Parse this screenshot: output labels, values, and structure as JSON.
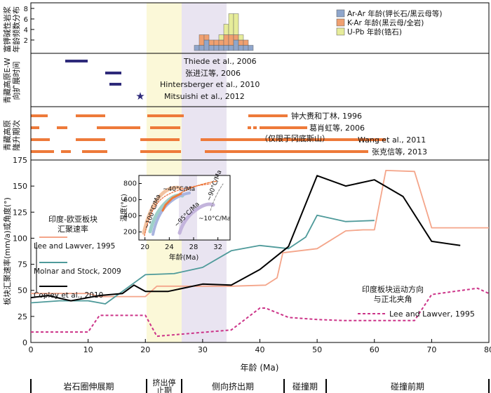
{
  "panel1": {
    "ylabel": "富钾碱性岩浆\n年龄频数分布",
    "yticks": [
      "2",
      "4",
      "6",
      "8"
    ],
    "legend": [
      {
        "label": "Ar-Ar 年龄(钾长石/黑云母等)",
        "color": "#8fa6cc"
      },
      {
        "label": "K-Ar 年龄(黑云母/全岩)",
        "color": "#f0a070"
      },
      {
        "label": "U-Pb 年龄(锆石)",
        "color": "#e6ec9a"
      }
    ]
  },
  "panel2": {
    "ylabel": "青藏高原E-W\n向扩展时间",
    "refs": [
      {
        "text": "Thiede et al., 2006"
      },
      {
        "text": "张进江等, 2006"
      },
      {
        "text": "Hintersberger et al., 2010"
      },
      {
        "text": "Mitsuishi et al., 2012"
      }
    ]
  },
  "panel3": {
    "ylabel": "青藏高原\n隆升期次",
    "refs": [
      {
        "text": "钟大赉和丁林, 1996"
      },
      {
        "text": "葛肖虹等, 2006"
      },
      {
        "text": "（仅限于冈底斯山）"
      },
      {
        "text": "Wang et al., 2011"
      },
      {
        "text": "张克信等, 2013"
      }
    ]
  },
  "main": {
    "ylabel": "板块汇聚速率(mm/a)或角度(°)",
    "xlabel": "年龄 (Ma)",
    "conv_label": "印度-欧亚板块\n汇聚速率",
    "angle_label": "印度板块运动方向\n与正北夹角",
    "angle_ref": "Lee and Lawver, 1995",
    "series": [
      {
        "name": "Lee and Lawver, 1995",
        "color": "#f4a58a"
      },
      {
        "name": "Molnar and Stock, 2009",
        "color": "#4e9a9a"
      },
      {
        "name": "Copley et al., 2010",
        "color": "#000000"
      }
    ]
  },
  "inset": {
    "ylabel": "温度(°C)",
    "xlabel": "年龄(Ma)",
    "labels": [
      "~40°C/Ma",
      "~90°C/Ma",
      "~100°C/Ma",
      "~95°C/Ma",
      "~10°C/Ma"
    ],
    "x_ticks": [
      "20",
      "24",
      "28",
      "32"
    ],
    "y_ticks": [
      "200",
      "400",
      "600",
      "800"
    ]
  },
  "phases": [
    {
      "label": "岩石圈伸展期"
    },
    {
      "label": "挤出停\n止期"
    },
    {
      "label": "侧向挤出期"
    },
    {
      "label": "碰撞期"
    },
    {
      "label": "碰撞前期"
    }
  ],
  "chart_data": {
    "type": "line",
    "x_axis": {
      "label": "年龄 (Ma)",
      "range": [
        0,
        80
      ],
      "ticks": [
        0,
        10,
        20,
        30,
        40,
        50,
        60,
        70,
        80
      ]
    },
    "y_axis": {
      "label": "板块汇聚速率(mm/a)或角度(°)",
      "range": [
        0,
        175
      ],
      "ticks": [
        0,
        25,
        50,
        75,
        100,
        125,
        150,
        175
      ]
    },
    "series": [
      {
        "name": "Lee and Lawver, 1995",
        "style": "solid",
        "x": [
          0,
          5,
          10,
          12,
          20,
          22,
          35,
          41,
          43,
          44,
          50,
          55,
          58,
          60,
          62,
          67,
          70,
          80
        ],
        "y": [
          47,
          47,
          47,
          44,
          44,
          54,
          54,
          55,
          62,
          86,
          90,
          107,
          108,
          108,
          165,
          164,
          110,
          110
        ]
      },
      {
        "name": "Molnar and Stock, 2009",
        "x": [
          0,
          5,
          10,
          13,
          18,
          20,
          25,
          30,
          35,
          40,
          45,
          48,
          50,
          55,
          60
        ],
        "y": [
          38,
          40,
          40,
          37,
          57,
          65,
          66,
          72,
          88,
          93,
          90,
          101,
          122,
          116,
          117
        ]
      },
      {
        "name": "Copley et al., 2010",
        "x": [
          0,
          3,
          7,
          12,
          16,
          18,
          20,
          24,
          30,
          35,
          40,
          45,
          50,
          55,
          60,
          65,
          70,
          75
        ],
        "y": [
          43,
          45,
          40,
          45,
          47,
          55,
          49,
          49,
          56,
          55,
          70,
          92,
          160,
          150,
          156,
          140,
          97,
          93
        ]
      },
      {
        "name": "印度板块运动方向与正北夹角 (Lee and Lawver, 1995)",
        "style": "dashed",
        "x": [
          0,
          10,
          12,
          20,
          22,
          35,
          40,
          41,
          45,
          50,
          55,
          60,
          62,
          67,
          70,
          78,
          80
        ],
        "y": [
          10,
          10,
          26,
          26,
          6,
          12,
          33,
          33,
          24,
          22,
          21,
          21,
          21,
          21,
          46,
          52,
          47
        ]
      }
    ]
  }
}
